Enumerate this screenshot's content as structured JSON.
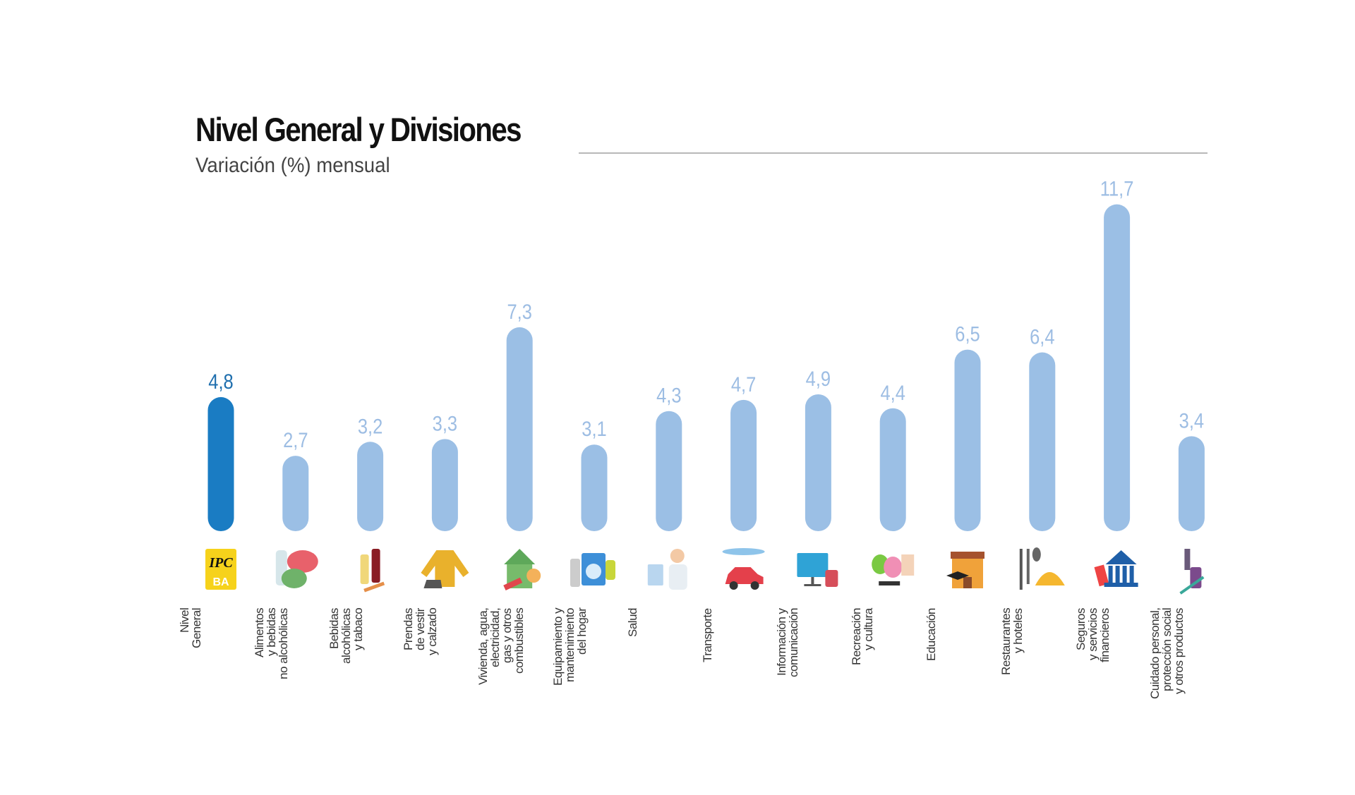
{
  "title": "Nivel General y Divisiones",
  "subtitle": "Variación (%) mensual",
  "colors": {
    "highlight": "#1a7cc3",
    "highlight_label": "#1f6fae",
    "bar": "#9bbfe5",
    "label": "#9dbde3"
  },
  "chart_data": {
    "type": "bar",
    "title": "Nivel General y Divisiones",
    "subtitle": "Variación (%) mensual",
    "xlabel": "",
    "ylabel": "Variación (%) mensual",
    "ylim": [
      0,
      12
    ],
    "grid": false,
    "categories": [
      "Nivel\nGeneral",
      "Alimentos\ny bebidas\nno alcohólicas",
      "Bebidas\nalcohólicas\ny tabaco",
      "Prendas\nde vestir\ny calzado",
      "Vivienda, agua,\nelectricidad,\ngas y otros\ncombustibles",
      "Equipamiento y\nmantenimiento\ndel hogar",
      "Salud",
      "Transporte",
      "Información y\ncomunicación",
      "Recreación\ny cultura",
      "Educación",
      "Restaurantes\ny hoteles",
      "Seguros\ny servicios\nfinancieros",
      "Cuidado personal,\nprotección social\ny otros productos"
    ],
    "values": [
      4.8,
      2.7,
      3.2,
      3.3,
      7.3,
      3.1,
      4.3,
      4.7,
      4.9,
      4.4,
      6.5,
      6.4,
      11.7,
      3.4
    ],
    "value_labels": [
      "4,8",
      "2,7",
      "3,2",
      "3,3",
      "7,3",
      "3,1",
      "4,3",
      "4,7",
      "4,9",
      "4,4",
      "6,5",
      "6,4",
      "11,7",
      "3,4"
    ],
    "icons": [
      "ipc-ba-logo-icon",
      "food-icon",
      "wine-tobacco-icon",
      "jacket-shoe-icon",
      "house-icon",
      "washing-machine-icon",
      "doctor-icon",
      "car-plane-icon",
      "computer-icon",
      "theater-masks-icon",
      "school-icon",
      "cutlery-bell-icon",
      "bank-icon",
      "cosmetics-icon"
    ],
    "icon_text": {
      "ipc_logo": "IPC",
      "ipc_logo_sub": "BA"
    },
    "highlight_index": 0
  }
}
